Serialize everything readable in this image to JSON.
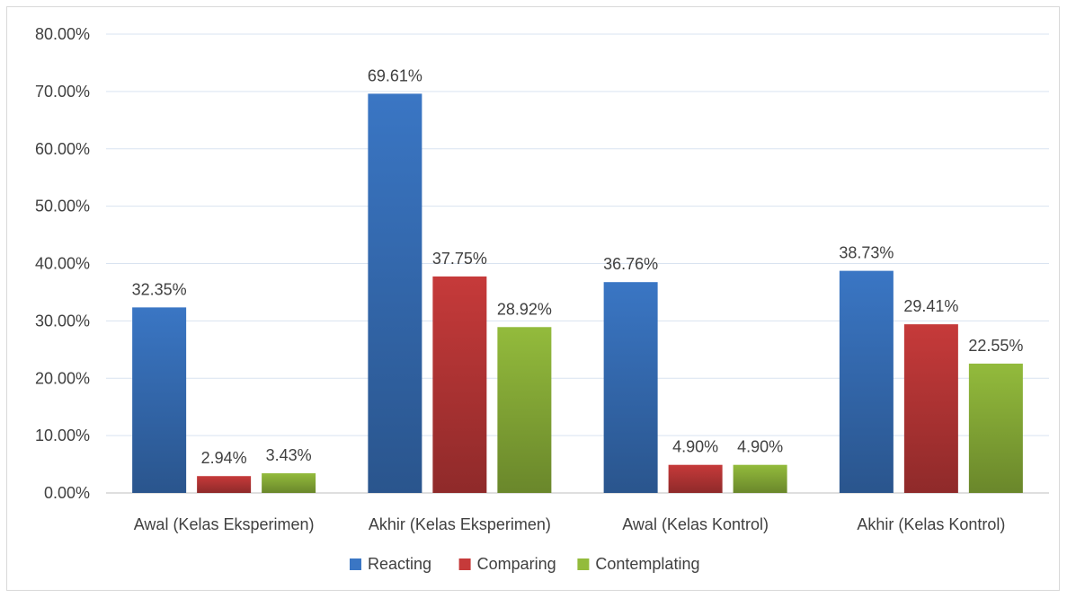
{
  "chart_data": {
    "type": "bar",
    "categories": [
      "Awal (Kelas Eksperimen)",
      "Akhir (Kelas Eksperimen)",
      "Awal (Kelas Kontrol)",
      "Akhir (Kelas Kontrol)"
    ],
    "series": [
      {
        "name": "Reacting",
        "values": [
          32.35,
          69.61,
          36.76,
          38.73
        ],
        "color": "#3a76c4",
        "labels": [
          "32.35%",
          "69.61%",
          "36.76%",
          "38.73%"
        ]
      },
      {
        "name": "Comparing",
        "values": [
          2.94,
          37.75,
          4.9,
          29.41
        ],
        "color": "#c63a3a",
        "labels": [
          "2.94%",
          "37.75%",
          "4.90%",
          "29.41%"
        ]
      },
      {
        "name": "Contemplating",
        "values": [
          3.43,
          28.92,
          4.9,
          22.55
        ],
        "color": "#93bb3c",
        "labels": [
          "3.43%",
          "28.92%",
          "4.90%",
          "22.55%"
        ]
      }
    ],
    "yticks": [
      "0.00%",
      "10.00%",
      "20.00%",
      "30.00%",
      "40.00%",
      "50.00%",
      "60.00%",
      "70.00%",
      "80.00%"
    ],
    "ylim": [
      0,
      80
    ],
    "grid": true,
    "legend": "bottom"
  }
}
